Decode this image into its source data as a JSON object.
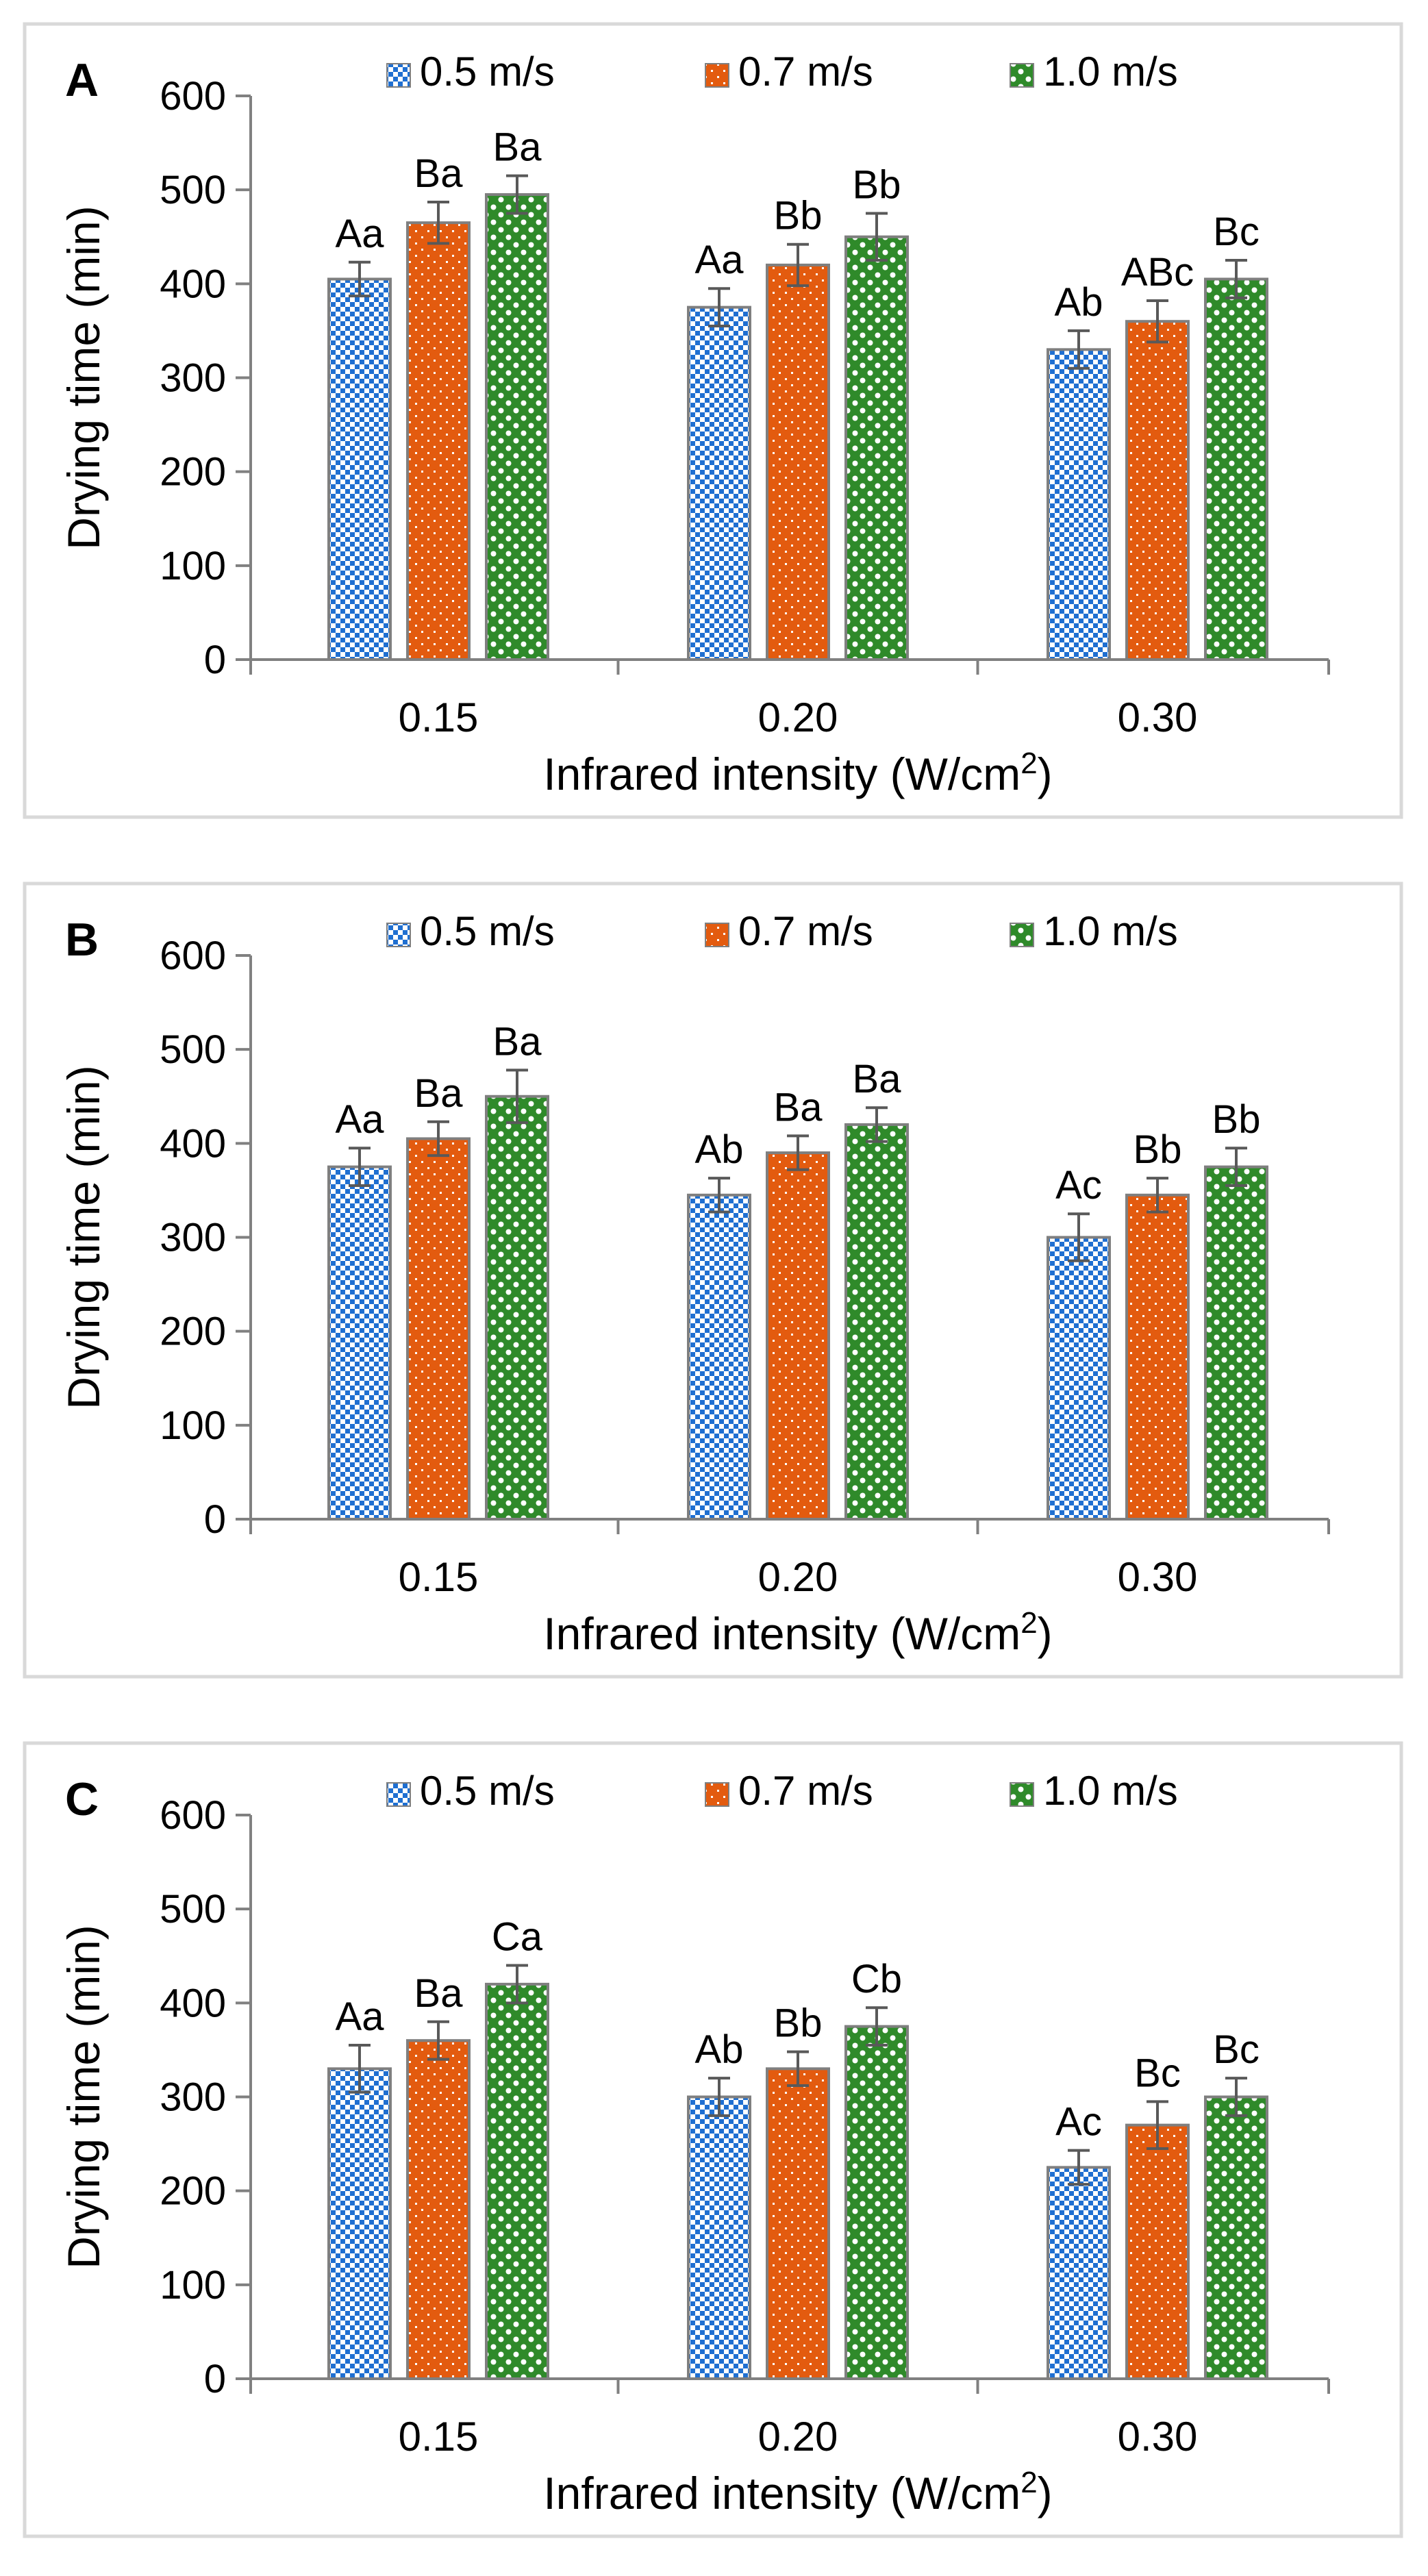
{
  "colors": {
    "frame": "#d9d9d9",
    "axis": "#808080",
    "series_blue": "#1f6fd1",
    "series_orange": "#e35b0f",
    "series_green": "#2f8a2a",
    "bar_edge": "#7f7f7f",
    "error_bar": "#595959"
  },
  "chart_data": [
    {
      "type": "bar",
      "panel_label": "A",
      "categories": [
        "0.15",
        "0.20",
        "0.30"
      ],
      "series": [
        {
          "name": "0.5 m/s",
          "values": [
            405,
            375,
            330
          ],
          "errors": [
            18,
            20,
            20
          ],
          "labels": [
            "Aa",
            "Aa",
            "Ab"
          ]
        },
        {
          "name": "0.7 m/s",
          "values": [
            465,
            420,
            360
          ],
          "errors": [
            22,
            22,
            22
          ],
          "labels": [
            "Ba",
            "Bb",
            "ABc"
          ]
        },
        {
          "name": "1.0 m/s",
          "values": [
            495,
            450,
            405
          ],
          "errors": [
            20,
            25,
            20
          ],
          "labels": [
            "Ba",
            "Bb",
            "Bc"
          ]
        }
      ],
      "xlabel": "Infrared intensity (W/cm",
      "xlabel_sup": "2",
      "xlabel_end": ")",
      "ylabel": "Drying time (min)",
      "yticks": [
        "0",
        "100",
        "200",
        "300",
        "400",
        "500",
        "600"
      ],
      "ylim": [
        0,
        600
      ],
      "legend_position": "top"
    },
    {
      "type": "bar",
      "panel_label": "B",
      "categories": [
        "0.15",
        "0.20",
        "0.30"
      ],
      "series": [
        {
          "name": "0.5 m/s",
          "values": [
            375,
            345,
            300
          ],
          "errors": [
            20,
            18,
            25
          ],
          "labels": [
            "Aa",
            "Ab",
            "Ac"
          ]
        },
        {
          "name": "0.7 m/s",
          "values": [
            405,
            390,
            345
          ],
          "errors": [
            18,
            18,
            18
          ],
          "labels": [
            "Ba",
            "Ba",
            "Bb"
          ]
        },
        {
          "name": "1.0 m/s",
          "values": [
            450,
            420,
            375
          ],
          "errors": [
            28,
            18,
            20
          ],
          "labels": [
            "Ba",
            "Ba",
            "Bb"
          ]
        }
      ],
      "xlabel": "Infrared intensity (W/cm",
      "xlabel_sup": "2",
      "xlabel_end": ")",
      "ylabel": "Drying time (min)",
      "yticks": [
        "0",
        "100",
        "200",
        "300",
        "400",
        "500",
        "600"
      ],
      "ylim": [
        0,
        600
      ],
      "legend_position": "top"
    },
    {
      "type": "bar",
      "panel_label": "C",
      "categories": [
        "0.15",
        "0.20",
        "0.30"
      ],
      "series": [
        {
          "name": "0.5 m/s",
          "values": [
            330,
            300,
            225
          ],
          "errors": [
            25,
            20,
            18
          ],
          "labels": [
            "Aa",
            "Ab",
            "Ac"
          ]
        },
        {
          "name": "0.7 m/s",
          "values": [
            360,
            330,
            270
          ],
          "errors": [
            20,
            18,
            25
          ],
          "labels": [
            "Ba",
            "Bb",
            "Bc"
          ]
        },
        {
          "name": "1.0 m/s",
          "values": [
            420,
            375,
            300
          ],
          "errors": [
            20,
            20,
            20
          ],
          "labels": [
            "Ca",
            "Cb",
            "Bc"
          ]
        }
      ],
      "xlabel": "Infrared intensity (W/cm",
      "xlabel_sup": "2",
      "xlabel_end": ")",
      "ylabel": "Drying time (min)",
      "yticks": [
        "0",
        "100",
        "200",
        "300",
        "400",
        "500",
        "600"
      ],
      "ylim": [
        0,
        600
      ],
      "legend_position": "top"
    }
  ]
}
